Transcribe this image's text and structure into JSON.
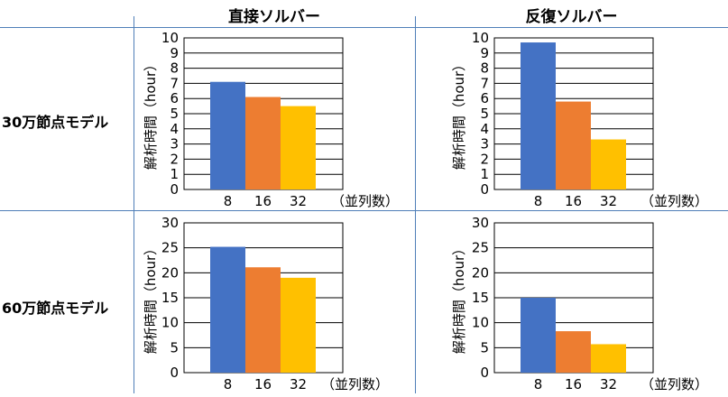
{
  "columns": [
    "直接ソルバー",
    "反復ソルバー"
  ],
  "rows": [
    "30万節点モデル",
    "60万節点モデル"
  ],
  "chart_data": [
    {
      "type": "bar",
      "row": "30万節点モデル",
      "column": "直接ソルバー",
      "categories": [
        "8",
        "16",
        "32"
      ],
      "values": [
        7.1,
        6.1,
        5.5
      ],
      "ylabel": "解析時間（hour）",
      "xlabel": "（並列数）",
      "ylim": [
        0,
        10
      ],
      "yticks": [
        0,
        1,
        2,
        3,
        4,
        5,
        6,
        7,
        8,
        9,
        10
      ],
      "grid": true,
      "colors": [
        "#4472c4",
        "#ed7d31",
        "#ffc000"
      ]
    },
    {
      "type": "bar",
      "row": "30万節点モデル",
      "column": "反復ソルバー",
      "categories": [
        "8",
        "16",
        "32"
      ],
      "values": [
        9.7,
        5.8,
        3.3
      ],
      "ylabel": "解析時間（hour）",
      "xlabel": "（並列数）",
      "ylim": [
        0,
        10
      ],
      "yticks": [
        0,
        1,
        2,
        3,
        4,
        5,
        6,
        7,
        8,
        9,
        10
      ],
      "grid": true,
      "colors": [
        "#4472c4",
        "#ed7d31",
        "#ffc000"
      ]
    },
    {
      "type": "bar",
      "row": "60万節点モデル",
      "column": "直接ソルバー",
      "categories": [
        "8",
        "16",
        "32"
      ],
      "values": [
        25.2,
        21.1,
        19.0
      ],
      "ylabel": "解析時間（hour）",
      "xlabel": "（並列数）",
      "ylim": [
        0,
        30
      ],
      "yticks": [
        0,
        5,
        10,
        15,
        20,
        25,
        30
      ],
      "grid": true,
      "colors": [
        "#4472c4",
        "#ed7d31",
        "#ffc000"
      ]
    },
    {
      "type": "bar",
      "row": "60万節点モデル",
      "column": "反復ソルバー",
      "categories": [
        "8",
        "16",
        "32"
      ],
      "values": [
        15.0,
        8.3,
        5.7
      ],
      "ylabel": "解析時間（hour）",
      "xlabel": "（並列数）",
      "ylim": [
        0,
        30
      ],
      "yticks": [
        0,
        5,
        10,
        15,
        20,
        25,
        30
      ],
      "grid": true,
      "colors": [
        "#4472c4",
        "#ed7d31",
        "#ffc000"
      ]
    }
  ]
}
